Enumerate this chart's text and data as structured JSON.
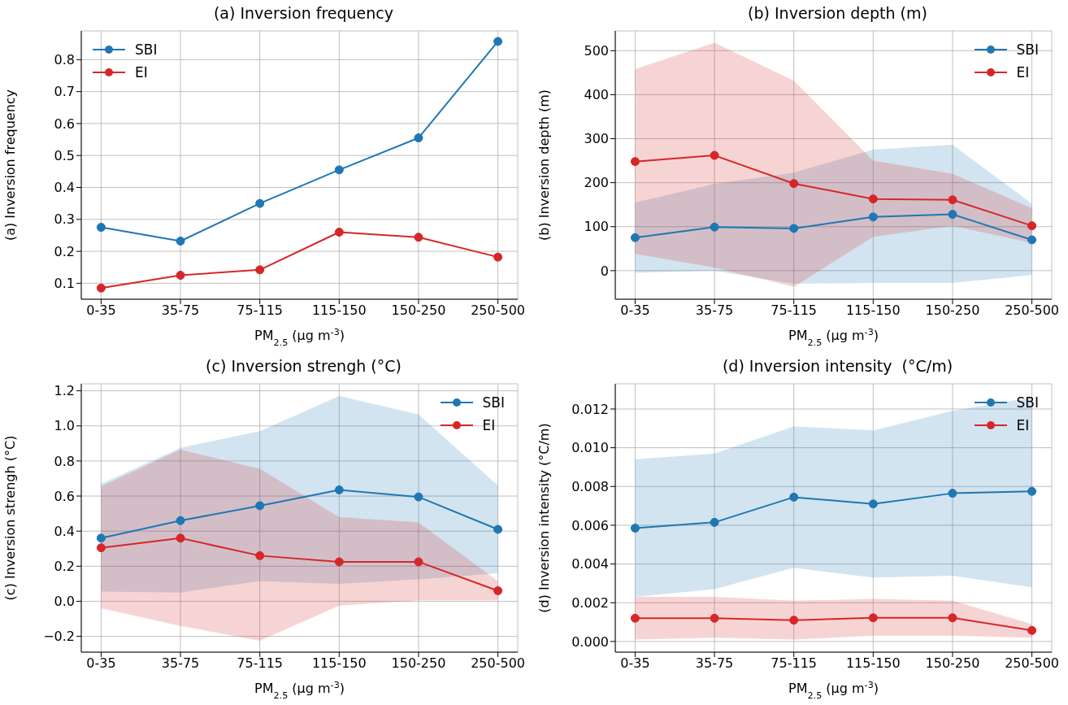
{
  "chart_data": [
    {
      "type": "line",
      "title": "(a) Inversion frequency",
      "xlabel": "PM$_{2.5}$ (µg m$^{-3}$)",
      "ylabel": "(a) Inversion frequency",
      "categories": [
        "0-35",
        "35-75",
        "75-115",
        "115-150",
        "150-250",
        "250-500"
      ],
      "ylim": [
        0.05,
        0.89
      ],
      "yticks": [
        0.1,
        0.2,
        0.3,
        0.4,
        0.5,
        0.6,
        0.7,
        0.8
      ],
      "grid": true,
      "legend": "top left",
      "marker": "circle",
      "line_style": "solid",
      "series": [
        {
          "name": "SBI",
          "color": "#1f77b4",
          "values": [
            0.275,
            0.232,
            0.35,
            0.455,
            0.555,
            0.857
          ]
        },
        {
          "name": "EI",
          "color": "#d62728",
          "values": [
            0.085,
            0.125,
            0.142,
            0.26,
            0.244,
            0.182
          ]
        }
      ]
    },
    {
      "type": "line",
      "title": "(b) Inversion depth (m)",
      "xlabel": "PM$_{2.5}$ (µg m$^{-3}$)",
      "ylabel": "(b) Inversion depth (m)",
      "categories": [
        "0-35",
        "35-75",
        "75-115",
        "115-150",
        "150-250",
        "250-500"
      ],
      "ylim": [
        -65,
        545
      ],
      "yticks": [
        0,
        100,
        200,
        300,
        400,
        500
      ],
      "grid": true,
      "legend": "top right",
      "marker": "circle",
      "line_style": "solid",
      "series": [
        {
          "name": "SBI",
          "color": "#1f77b4",
          "values": [
            75,
            99,
            96,
            122,
            128,
            70
          ],
          "lower": [
            -5,
            0,
            -30,
            -28,
            -28,
            -10
          ],
          "upper": [
            155,
            197,
            223,
            275,
            286,
            152
          ]
        },
        {
          "name": "EI",
          "color": "#d62728",
          "values": [
            248,
            262,
            198,
            163,
            161,
            102
          ],
          "lower": [
            38,
            7,
            -37,
            77,
            102,
            63
          ],
          "upper": [
            458,
            518,
            432,
            250,
            220,
            142
          ]
        }
      ]
    },
    {
      "type": "line",
      "title": "(c) Inversion strengh (°C)",
      "xlabel": "PM$_{2.5}$ (µg m$^{-3}$)",
      "ylabel": "(c) Inversion strengh (°C)",
      "categories": [
        "0-35",
        "35-75",
        "75-115",
        "115-150",
        "150-250",
        "250-500"
      ],
      "ylim": [
        -0.29,
        1.24
      ],
      "yticks": [
        {
          "value": -0.2,
          "label": "−0.2"
        },
        {
          "value": 0,
          "label": "0.0"
        },
        {
          "value": 0.2,
          "label": "0.2"
        },
        {
          "value": 0.4,
          "label": "0.4"
        },
        {
          "value": 0.6,
          "label": "0.6"
        },
        {
          "value": 0.8,
          "label": "0.8"
        },
        {
          "value": 1,
          "label": "1.0"
        },
        {
          "value": 1.2,
          "label": "1.2"
        }
      ],
      "grid": true,
      "legend": "top right",
      "marker": "circle",
      "line_style": "solid",
      "series": [
        {
          "name": "SBI",
          "color": "#1f77b4",
          "values": [
            0.36,
            0.46,
            0.545,
            0.635,
            0.595,
            0.41
          ],
          "lower": [
            0.055,
            0.05,
            0.115,
            0.1,
            0.125,
            0.16
          ],
          "upper": [
            0.67,
            0.875,
            0.97,
            1.17,
            1.065,
            0.66
          ]
        },
        {
          "name": "EI",
          "color": "#d62728",
          "values": [
            0.305,
            0.36,
            0.26,
            0.225,
            0.225,
            0.06
          ],
          "lower": [
            -0.04,
            -0.14,
            -0.225,
            -0.025,
            0.005,
            0.005
          ],
          "upper": [
            0.655,
            0.865,
            0.755,
            0.48,
            0.45,
            0.115
          ]
        }
      ]
    },
    {
      "type": "line",
      "title": "(d) Inversion intensity  (°C/m)",
      "xlabel": "PM$_{2.5}$ (µg m$^{-3}$)",
      "ylabel": "(d) Inversion intensity  (°C/m)",
      "categories": [
        "0-35",
        "35-75",
        "75-115",
        "115-150",
        "150-250",
        "250-500"
      ],
      "ylim": [
        -0.00055,
        0.0133
      ],
      "yticks": [
        {
          "value": 0,
          "label": "0.000"
        },
        {
          "value": 0.002,
          "label": "0.002"
        },
        {
          "value": 0.004,
          "label": "0.004"
        },
        {
          "value": 0.006,
          "label": "0.006"
        },
        {
          "value": 0.008,
          "label": "0.008"
        },
        {
          "value": 0.01,
          "label": "0.010"
        },
        {
          "value": 0.012,
          "label": "0.012"
        }
      ],
      "grid": true,
      "legend": "top right",
      "marker": "circle",
      "line_style": "solid",
      "series": [
        {
          "name": "SBI",
          "color": "#1f77b4",
          "values": [
            0.00585,
            0.00615,
            0.00745,
            0.0071,
            0.00765,
            0.00775
          ],
          "lower": [
            0.0023,
            0.0027,
            0.0038,
            0.0033,
            0.0034,
            0.0028
          ],
          "upper": [
            0.0094,
            0.0097,
            0.0111,
            0.0109,
            0.0119,
            0.0126
          ]
        },
        {
          "name": "EI",
          "color": "#d62728",
          "values": [
            0.0012,
            0.0012,
            0.0011,
            0.00122,
            0.00122,
            0.00057
          ],
          "lower": [
            0.0001,
            0.0002,
            0.0001,
            0.0003,
            0.0003,
            0.0002
          ],
          "upper": [
            0.0023,
            0.0023,
            0.0021,
            0.0022,
            0.0021,
            0.0009
          ]
        }
      ]
    }
  ]
}
